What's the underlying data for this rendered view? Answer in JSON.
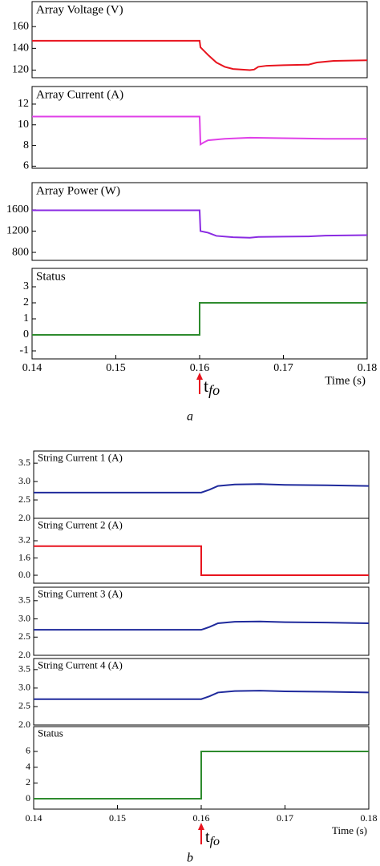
{
  "chart_data": [
    {
      "type": "line",
      "title": "Array Voltage (V)",
      "color": "#e8141e",
      "x": [
        0.14,
        0.16,
        0.1601,
        0.161,
        0.162,
        0.163,
        0.164,
        0.166,
        0.1665,
        0.167,
        0.168,
        0.17,
        0.173,
        0.174,
        0.176,
        0.18
      ],
      "values": [
        147,
        147,
        141,
        134,
        127,
        123,
        121,
        120,
        120.5,
        123,
        124,
        124.5,
        125,
        127,
        128.5,
        129
      ],
      "xlim": [
        0.14,
        0.18
      ],
      "ylim": [
        113,
        183
      ],
      "yticks": [
        120,
        140,
        160
      ]
    },
    {
      "type": "line",
      "title": "Array Current (A)",
      "color": "#e040e8",
      "x": [
        0.14,
        0.16,
        0.1601,
        0.1605,
        0.161,
        0.163,
        0.166,
        0.17,
        0.175,
        0.18
      ],
      "values": [
        10.8,
        10.8,
        8.1,
        8.3,
        8.5,
        8.65,
        8.75,
        8.7,
        8.65,
        8.65
      ],
      "xlim": [
        0.14,
        0.18
      ],
      "ylim": [
        5.8,
        13.7
      ],
      "yticks": [
        6,
        8,
        10,
        12
      ]
    },
    {
      "type": "line",
      "title": "Array Power (W)",
      "color": "#8a2be2",
      "x": [
        0.14,
        0.16,
        0.1601,
        0.161,
        0.162,
        0.164,
        0.166,
        0.167,
        0.17,
        0.173,
        0.175,
        0.18
      ],
      "values": [
        1590,
        1590,
        1200,
        1170,
        1110,
        1085,
        1075,
        1090,
        1095,
        1100,
        1115,
        1125
      ],
      "xlim": [
        0.14,
        0.18
      ],
      "ylim": [
        650,
        2110
      ],
      "yticks": [
        800,
        1200,
        1600
      ]
    },
    {
      "type": "line",
      "title": "Status",
      "color": "#2e8b2e",
      "x": [
        0.14,
        0.16,
        0.16,
        0.18
      ],
      "values": [
        0,
        0,
        2,
        2
      ],
      "xlim": [
        0.14,
        0.18
      ],
      "ylim": [
        -1.5,
        4.15
      ],
      "yticks": [
        -1,
        0,
        1,
        2,
        3
      ],
      "xticks": [
        0.14,
        0.15,
        0.16,
        0.17,
        0.18
      ],
      "xlabel": "Time (s)",
      "annotation": {
        "text": "t",
        "subscript": "fo",
        "x": 0.16
      },
      "caption": "a"
    },
    {
      "type": "line",
      "title": "String Current 1 (A)",
      "color": "#1f2a9c",
      "x": [
        0.14,
        0.16,
        0.161,
        0.162,
        0.164,
        0.167,
        0.17,
        0.175,
        0.18
      ],
      "values": [
        2.7,
        2.7,
        2.78,
        2.88,
        2.92,
        2.93,
        2.91,
        2.9,
        2.88
      ],
      "xlim": [
        0.14,
        0.18
      ],
      "ylim": [
        2.0,
        3.83
      ],
      "yticks": [
        {
          "value": 2,
          "label": "2.0"
        },
        2.5,
        {
          "value": 3,
          "label": "3.0"
        },
        3.5
      ]
    },
    {
      "type": "line",
      "title": "String Current 2 (A)",
      "color": "#e8141e",
      "x": [
        0.14,
        0.16,
        0.16,
        0.18
      ],
      "values": [
        2.7,
        2.7,
        0,
        0
      ],
      "xlim": [
        0.14,
        0.18
      ],
      "ylim": [
        -0.74,
        5.28
      ],
      "yticks": [
        {
          "value": 0,
          "label": "0.0"
        },
        1.6,
        3.2
      ]
    },
    {
      "type": "line",
      "title": "String Current 3 (A)",
      "color": "#1f2a9c",
      "x": [
        0.14,
        0.16,
        0.161,
        0.162,
        0.164,
        0.167,
        0.17,
        0.175,
        0.18
      ],
      "values": [
        2.7,
        2.7,
        2.78,
        2.88,
        2.92,
        2.93,
        2.91,
        2.9,
        2.88
      ],
      "xlim": [
        0.14,
        0.18
      ],
      "ylim": [
        2.0,
        3.87
      ],
      "yticks": [
        {
          "value": 2,
          "label": "2.0"
        },
        2.5,
        {
          "value": 3,
          "label": "3.0"
        },
        3.5
      ]
    },
    {
      "type": "line",
      "title": "String Current 4 (A)",
      "color": "#1f2a9c",
      "x": [
        0.14,
        0.16,
        0.161,
        0.162,
        0.164,
        0.167,
        0.17,
        0.175,
        0.18
      ],
      "values": [
        2.7,
        2.7,
        2.78,
        2.88,
        2.92,
        2.93,
        2.91,
        2.9,
        2.88
      ],
      "xlim": [
        0.14,
        0.18
      ],
      "ylim": [
        2.0,
        3.8
      ],
      "yticks": [
        {
          "value": 2,
          "label": "2.0"
        },
        2.5,
        {
          "value": 3,
          "label": "3.0"
        },
        3.5
      ]
    },
    {
      "type": "line",
      "title": "Status",
      "color": "#2e8b2e",
      "x": [
        0.14,
        0.16,
        0.16,
        0.18
      ],
      "values": [
        0,
        0,
        6,
        6
      ],
      "xlim": [
        0.14,
        0.18
      ],
      "ylim": [
        -1.32,
        9.15
      ],
      "yticks": [
        0,
        2,
        4,
        6
      ],
      "xticks": [
        0.14,
        0.15,
        0.16,
        0.17,
        0.18
      ],
      "xlabel": "Time (s)",
      "annotation": {
        "text": "t",
        "subscript": "fo",
        "x": 0.16
      },
      "caption": "b"
    }
  ]
}
